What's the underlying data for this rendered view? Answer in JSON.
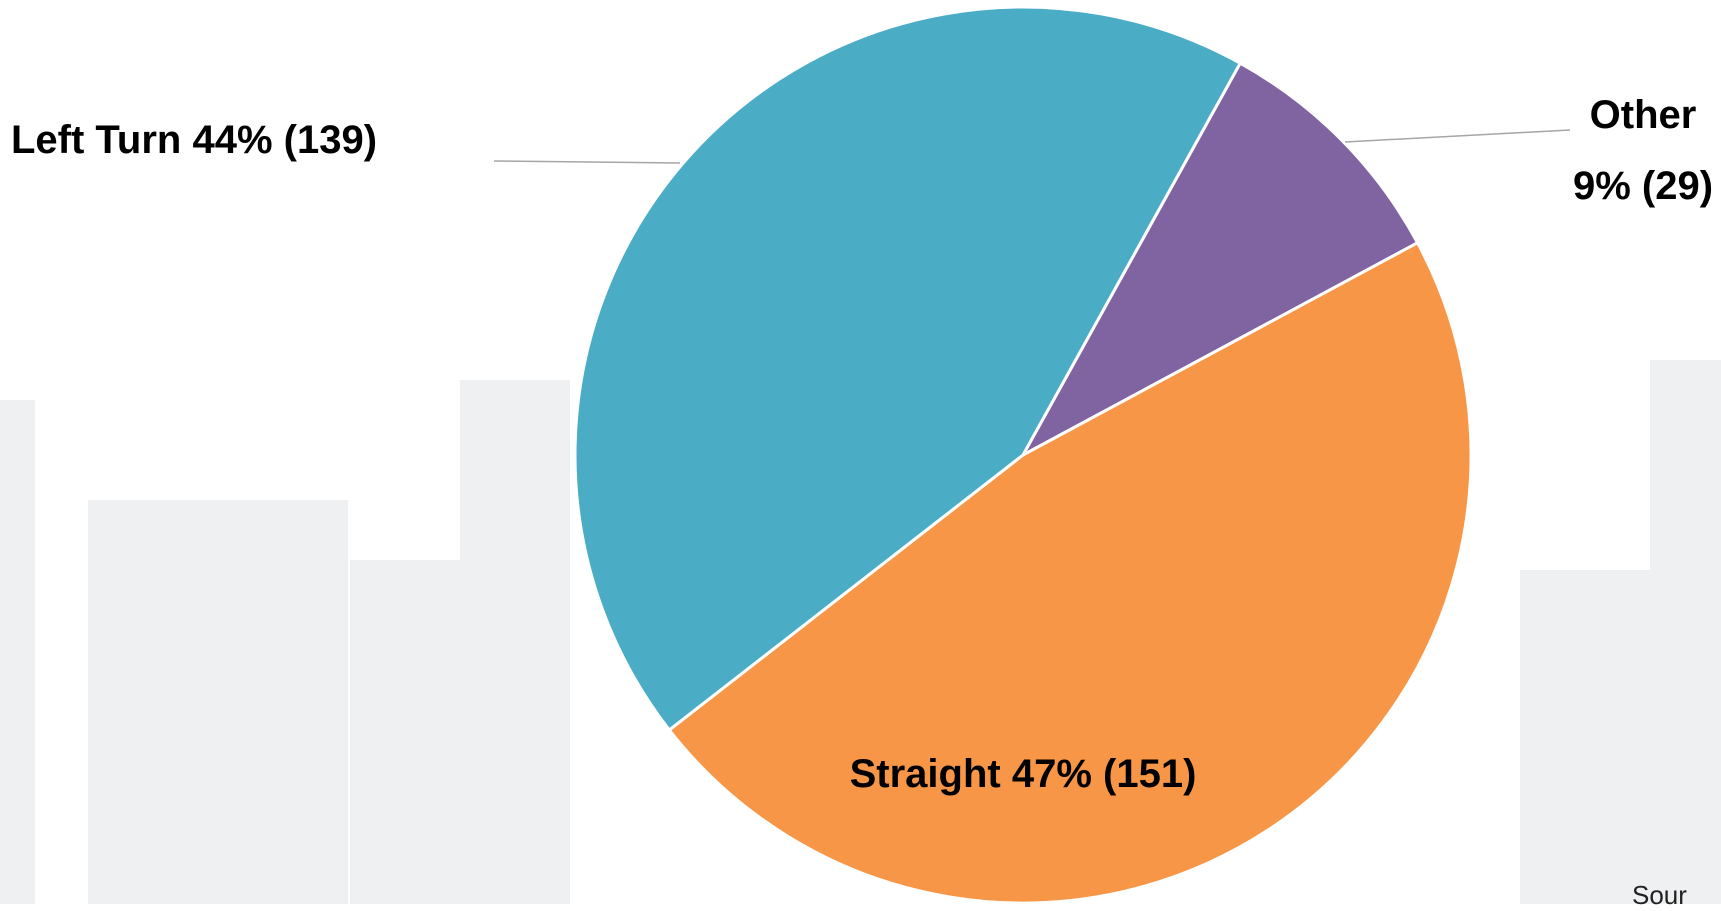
{
  "chart_data": {
    "type": "pie",
    "categories": [
      "Other",
      "Straight",
      "Left Turn"
    ],
    "values": [
      29,
      151,
      139
    ],
    "value_labels": [
      "9% (29)",
      "47% (151)",
      "44% (139)"
    ],
    "colors": [
      "#8064a2",
      "#f79646",
      "#4bacc6"
    ],
    "source": "Sour"
  }
}
